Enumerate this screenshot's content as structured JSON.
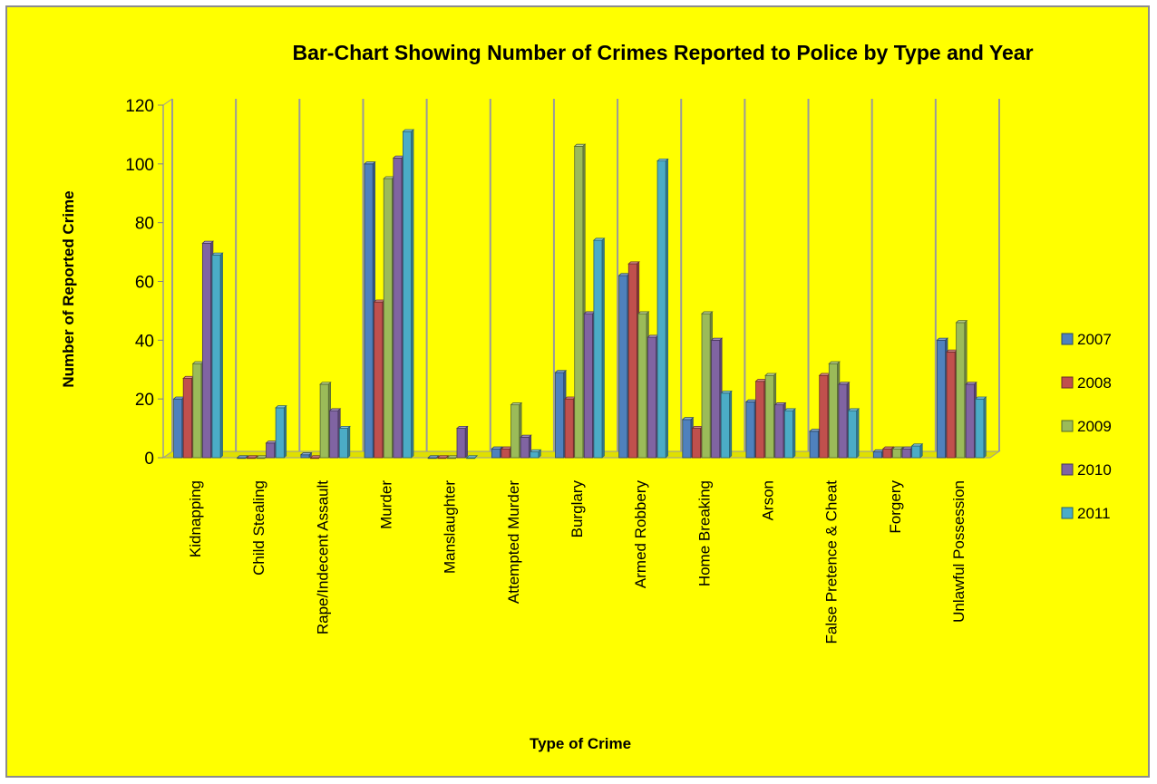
{
  "chart_data": {
    "type": "bar",
    "title": "Bar-Chart Showing Number of Crimes Reported to Police by Type and Year",
    "xlabel": "Type of Crime",
    "ylabel": "Number of Reported Crime",
    "ylim": [
      0,
      120
    ],
    "yticks": [
      "0",
      "20",
      "40",
      "60",
      "80",
      "100",
      "120"
    ],
    "grid": "vertical category dividers",
    "legend_position": "right",
    "categories": [
      "Kidnapping",
      "Child Stealing",
      "Rape/Indecent Assault",
      "Murder",
      "Manslaughter",
      "Attempted Murder",
      "Burglary",
      "Armed Robbery",
      "Home Breaking",
      "Arson",
      "False Pretence & Cheat",
      "Forgery",
      "Unlawful Possession"
    ],
    "series": [
      {
        "name": "2007",
        "color": "#4f81bd",
        "values": [
          20,
          0,
          1,
          100,
          0,
          3,
          29,
          62,
          13,
          19,
          9,
          2,
          40
        ]
      },
      {
        "name": "2008",
        "color": "#c0504d",
        "values": [
          27,
          0,
          0,
          53,
          0,
          3,
          20,
          66,
          10,
          26,
          28,
          3,
          36
        ]
      },
      {
        "name": "2009",
        "color": "#9bbb59",
        "values": [
          32,
          0,
          25,
          95,
          0,
          18,
          106,
          49,
          49,
          28,
          32,
          3,
          46
        ]
      },
      {
        "name": "2010",
        "color": "#8064a2",
        "values": [
          73,
          5,
          16,
          102,
          10,
          7,
          49,
          41,
          40,
          18,
          25,
          3,
          25
        ]
      },
      {
        "name": "2011",
        "color": "#4bacc6",
        "values": [
          69,
          17,
          10,
          111,
          0,
          2,
          74,
          101,
          22,
          16,
          16,
          4,
          20
        ]
      }
    ]
  }
}
